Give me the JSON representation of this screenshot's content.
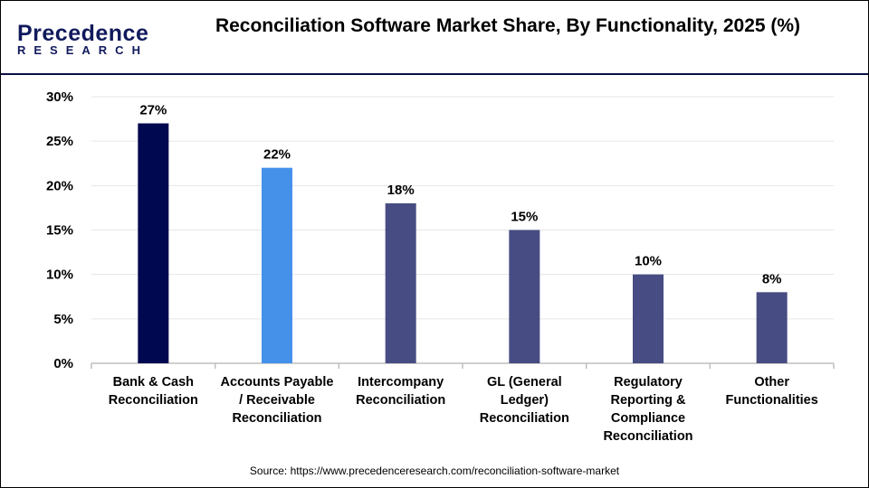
{
  "logo": {
    "line1": "Precedence",
    "line2": "RESEARCH"
  },
  "chart_data": {
    "type": "bar",
    "title": "Reconciliation Software Market Share, By Functionality, 2025 (%)",
    "categories": [
      "Bank & Cash Reconciliation",
      "Accounts Payable / Receivable Reconciliation",
      "Intercompany Reconciliation",
      "GL (General Ledger) Reconciliation",
      "Regulatory Reporting & Compliance Reconciliation",
      "Other Functionalities"
    ],
    "category_lines": [
      [
        "Bank & Cash",
        "Reconciliation"
      ],
      [
        "Accounts Payable",
        "/ Receivable",
        "Reconciliation"
      ],
      [
        "Intercompany",
        "Reconciliation"
      ],
      [
        "GL (General",
        "Ledger)",
        "Reconciliation"
      ],
      [
        "Regulatory",
        "Reporting &",
        "Compliance",
        "Reconciliation"
      ],
      [
        "Other",
        "Functionalities"
      ]
    ],
    "values": [
      27,
      22,
      18,
      15,
      10,
      8
    ],
    "data_labels": [
      "27%",
      "22%",
      "18%",
      "15%",
      "10%",
      "8%"
    ],
    "colors": [
      "#000850",
      "#4591ea",
      "#474c83",
      "#474c83",
      "#474c83",
      "#474c83"
    ],
    "ylim": [
      0,
      30
    ],
    "yticks": [
      "0%",
      "5%",
      "10%",
      "15%",
      "20%",
      "25%",
      "30%"
    ],
    "grid": true
  },
  "source": "Source: https://www.precedenceresearch.com/reconciliation-software-market"
}
